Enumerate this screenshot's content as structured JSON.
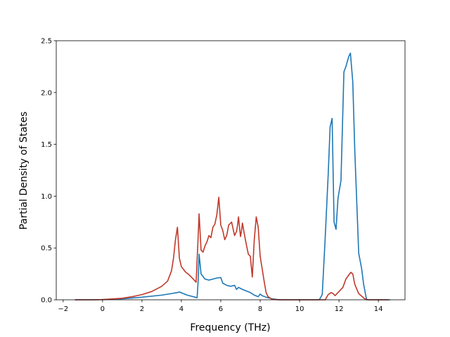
{
  "chart_data": {
    "type": "line",
    "title": "",
    "xlabel": "Frequency (THz)",
    "ylabel": "Partial Density of States",
    "xlim": [
      -2.35,
      15.35
    ],
    "ylim": [
      0,
      2.5
    ],
    "xticks": [
      -2,
      0,
      2,
      4,
      6,
      8,
      10,
      12,
      14
    ],
    "xtick_labels": [
      "−2",
      "0",
      "2",
      "4",
      "6",
      "8",
      "10",
      "12",
      "14"
    ],
    "yticks": [
      0.0,
      0.5,
      1.0,
      1.5,
      2.0,
      2.5
    ],
    "ytick_labels": [
      "0.0",
      "0.5",
      "1.0",
      "1.5",
      "2.0",
      "2.5"
    ],
    "grid": false,
    "legend": "none",
    "series": [
      {
        "color": "#1f77b4",
        "x": [
          -1.4,
          -0.5,
          0,
          1,
          2,
          3,
          3.5,
          3.8,
          3.9,
          4.3,
          4.7,
          4.8,
          4.85,
          4.9,
          5.0,
          5.2,
          5.4,
          5.6,
          5.8,
          6.0,
          6.1,
          6.3,
          6.5,
          6.7,
          6.8,
          6.9,
          7.1,
          7.3,
          7.5,
          7.7,
          7.9,
          8.0,
          8.1,
          8.3,
          8.6,
          8.9,
          9.0,
          11.0,
          11.15,
          11.3,
          11.45,
          11.55,
          11.65,
          11.75,
          11.85,
          11.95,
          12.1,
          12.25,
          12.35,
          12.5,
          12.58,
          12.7,
          12.8,
          13.0,
          13.15,
          13.25,
          13.4,
          14.6
        ],
        "y": [
          0,
          0,
          0.002,
          0.01,
          0.025,
          0.045,
          0.06,
          0.07,
          0.075,
          0.045,
          0.025,
          0.02,
          0.18,
          0.44,
          0.25,
          0.2,
          0.19,
          0.2,
          0.21,
          0.215,
          0.16,
          0.14,
          0.13,
          0.14,
          0.1,
          0.12,
          0.1,
          0.085,
          0.07,
          0.045,
          0.03,
          0.055,
          0.04,
          0.025,
          0.01,
          0.002,
          0,
          0,
          0.05,
          0.6,
          1.2,
          1.67,
          1.75,
          0.75,
          0.68,
          0.98,
          1.15,
          2.2,
          2.25,
          2.35,
          2.38,
          2.1,
          1.45,
          0.45,
          0.3,
          0.15,
          0,
          0
        ]
      },
      {
        "color": "#c0392b",
        "x": [
          -1.4,
          -0.5,
          0,
          1,
          1.5,
          2,
          2.5,
          3,
          3.3,
          3.5,
          3.6,
          3.7,
          3.8,
          3.9,
          4.0,
          4.2,
          4.4,
          4.6,
          4.75,
          4.85,
          4.9,
          5.0,
          5.1,
          5.2,
          5.3,
          5.4,
          5.5,
          5.6,
          5.7,
          5.8,
          5.9,
          6.0,
          6.1,
          6.2,
          6.3,
          6.4,
          6.55,
          6.7,
          6.8,
          6.85,
          6.9,
          7.0,
          7.05,
          7.1,
          7.2,
          7.3,
          7.4,
          7.5,
          7.6,
          7.7,
          7.8,
          7.9,
          8.0,
          8.05,
          8.1,
          8.2,
          8.3,
          8.4,
          8.6,
          8.9,
          9.0,
          11.3,
          11.45,
          11.6,
          11.7,
          11.8,
          12.0,
          12.2,
          12.35,
          12.5,
          12.6,
          12.7,
          12.8,
          13.0,
          13.3,
          13.5,
          14.5
        ],
        "y": [
          0,
          0,
          0.002,
          0.015,
          0.03,
          0.05,
          0.08,
          0.13,
          0.18,
          0.28,
          0.4,
          0.58,
          0.7,
          0.4,
          0.32,
          0.27,
          0.24,
          0.2,
          0.17,
          0.6,
          0.83,
          0.48,
          0.46,
          0.52,
          0.56,
          0.62,
          0.6,
          0.7,
          0.73,
          0.82,
          0.99,
          0.72,
          0.67,
          0.58,
          0.62,
          0.72,
          0.75,
          0.62,
          0.66,
          0.72,
          0.8,
          0.61,
          0.66,
          0.74,
          0.63,
          0.53,
          0.44,
          0.42,
          0.22,
          0.58,
          0.8,
          0.7,
          0.42,
          0.36,
          0.3,
          0.18,
          0.07,
          0.03,
          0.005,
          0,
          0,
          0,
          0.05,
          0.07,
          0.06,
          0.04,
          0.08,
          0.12,
          0.2,
          0.24,
          0.265,
          0.25,
          0.15,
          0.06,
          0.01,
          0,
          0
        ]
      }
    ]
  }
}
